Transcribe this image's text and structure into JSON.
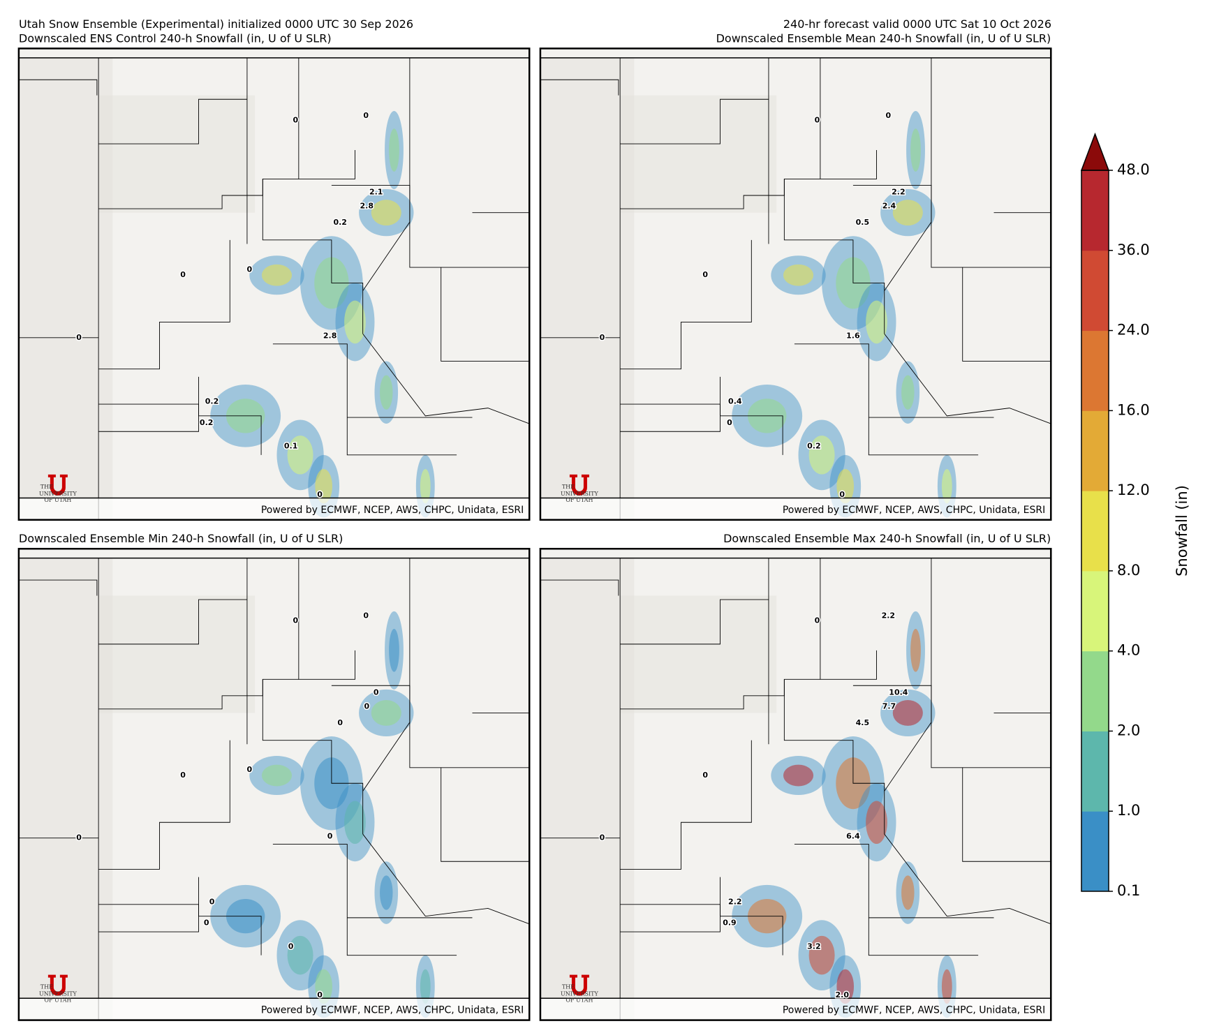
{
  "header": {
    "init": "Utah Snow Ensemble (Experimental) initialized 0000 UTC 30 Sep 2026",
    "valid": "240-hr forecast valid 0000 UTC Sat 10 Oct 2026"
  },
  "panels": [
    {
      "title": "Downscaled ENS Control 240-h Snowfall (in, U of U SLR)",
      "labels": [
        "0",
        "0",
        "2.1",
        "2.8",
        "0.2",
        "0",
        "0",
        "2.8",
        "0",
        "0.2",
        "0.2",
        "0.1",
        "0"
      ]
    },
    {
      "title": "Downscaled Ensemble Mean 240-h Snowfall (in, U of U SLR)",
      "labels": [
        "0",
        "0",
        "2.2",
        "2.4",
        "0.5",
        "0",
        "1.6",
        "0",
        "0.4",
        "0",
        "0.2",
        "0"
      ]
    },
    {
      "title": "Downscaled Ensemble Min 240-h Snowfall (in, U of U SLR)",
      "labels": [
        "0",
        "0",
        "0",
        "0",
        "0",
        "0",
        "0",
        "0",
        "0",
        "0",
        "0",
        "0",
        "0"
      ]
    },
    {
      "title": "Downscaled Ensemble Max 240-h Snowfall (in, U of U SLR)",
      "labels": [
        "0",
        "2.2",
        "10.4",
        "7.7",
        "4.5",
        "0",
        "6.4",
        "0",
        "2.2",
        "0.9",
        "3.2",
        "2.0"
      ]
    }
  ],
  "credit": "Powered by ECMWF, NCEP, AWS, CHPC, Unidata, ESRI",
  "logo": {
    "lines": [
      "THE",
      "UNIVERSITY",
      "OF UTAH"
    ]
  },
  "colorbar": {
    "label": "Snowfall (in)",
    "ticks": [
      {
        "value": 0.1,
        "label": "0.1"
      },
      {
        "value": 1,
        "label": "1.0"
      },
      {
        "value": 2,
        "label": "2.0"
      },
      {
        "value": 4,
        "label": "4.0"
      },
      {
        "value": 8,
        "label": "8.0"
      },
      {
        "value": 12,
        "label": "12.0"
      },
      {
        "value": 16,
        "label": "16.0"
      },
      {
        "value": 24,
        "label": "24.0"
      },
      {
        "value": 36,
        "label": "36.0"
      },
      {
        "value": 48,
        "label": "48.0"
      }
    ],
    "colors": [
      "#3a8fc6",
      "#5db7ac",
      "#93d98b",
      "#d8f57a",
      "#e8e04a",
      "#e3aa36",
      "#dc7732",
      "#d04a33",
      "#b7282f"
    ],
    "extend_color": "#8b0a0a"
  }
}
